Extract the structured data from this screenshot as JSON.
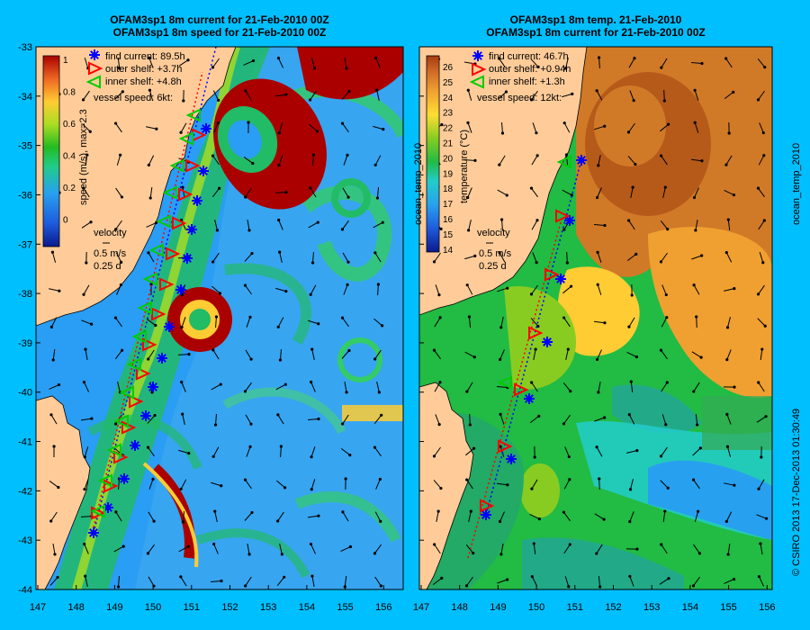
{
  "left_panel": {
    "title_line1": "OFAM3sp1 8m current for 21-Feb-2010 00Z",
    "title_line2": "OFAM3sp1 8m speed for 21-Feb-2010 00Z",
    "colorbar_label": "speed (m/s), max=2.3",
    "colorbar_ticks": [
      "1",
      "0.8",
      "0.6",
      "0.4",
      "0.2",
      "0"
    ],
    "legend": {
      "find_current": "find current: 89.5h",
      "outer_shelf": "outer shelf: +3.7h",
      "inner_shelf": "inner shelf: +4.8h",
      "vessel_speed": "vessel speed: 6kt:"
    },
    "velocity_label": "velocity",
    "velocity_scale1": "0.5 m/s",
    "velocity_scale2": "0.25 d"
  },
  "right_panel": {
    "title_line1": "OFAM3sp1 8m temp. 21-Feb-2010",
    "title_line2": "OFAM3sp1 8m current for 21-Feb-2010 00Z",
    "colorbar_label": "temperature (°C)",
    "colorbar_side_label": "ocean_temp_2010",
    "colorbar_ticks": [
      "26",
      "25",
      "24",
      "23",
      "22",
      "21",
      "20",
      "19",
      "18",
      "17",
      "16",
      "15",
      "14"
    ],
    "legend": {
      "find_current": "find current: 46.7h",
      "outer_shelf": "outer shelf: +0.94h",
      "inner_shelf": "inner shelf: +1.3h",
      "vessel_speed": "vessel speed: 12kt:"
    },
    "velocity_label": "velocity",
    "velocity_scale1": "0.5 m/s",
    "velocity_scale2": "0.25 d"
  },
  "y_axis_ticks": [
    "-33",
    "-34",
    "-35",
    "-36",
    "-37",
    "-38",
    "-39",
    "-40",
    "-41",
    "-42",
    "-43",
    "-44"
  ],
  "x_axis_ticks": [
    "147",
    "148",
    "149",
    "150",
    "151",
    "152",
    "153",
    "154",
    "155",
    "156"
  ],
  "right_margin_label_top": "ocean_temp_2010",
  "right_margin_label_bottom": "© CSIRO 2013   17-Dec-2013 01:30:49",
  "colors": {
    "background": "#00bfff",
    "land": "#ffcc99",
    "find_current_marker": "#0000ff",
    "outer_shelf_marker": "#ff0000",
    "inner_shelf_marker": "#00cc00"
  },
  "icons": [
    "asterisk-icon",
    "triangle-right-icon",
    "triangle-left-icon",
    "arrow-icon"
  ]
}
